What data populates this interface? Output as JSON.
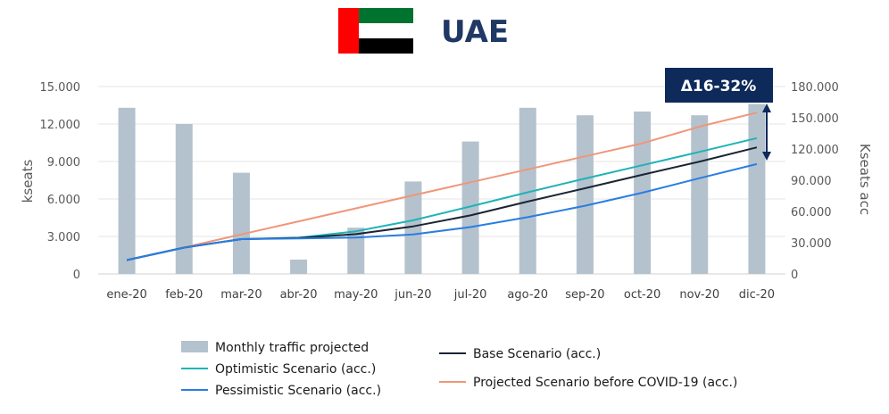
{
  "header": {
    "title": "UAE",
    "flag_colors": {
      "red": "#ff0000",
      "green": "#00732f",
      "white": "#ffffff",
      "black": "#000000"
    }
  },
  "callout": {
    "label": "Δ16-32%",
    "color": "#0d2a5a"
  },
  "chart_data": {
    "type": "bar+line",
    "title": "UAE",
    "categories": [
      "ene-20",
      "feb-20",
      "mar-20",
      "abr-20",
      "may-20",
      "jun-20",
      "jul-20",
      "ago-20",
      "sep-20",
      "oct-20",
      "nov-20",
      "dic-20"
    ],
    "y_left": {
      "label": "kseats",
      "range": [
        0,
        15000
      ],
      "ticks": [
        "0",
        "3.000",
        "6.000",
        "9.000",
        "12.000",
        "15.000"
      ],
      "tick_values": [
        0,
        3000,
        6000,
        9000,
        12000,
        15000
      ]
    },
    "y_right": {
      "label": "Kseats acc",
      "range": [
        0,
        180000
      ],
      "ticks": [
        "0",
        "30.000",
        "60.000",
        "90.000",
        "120.000",
        "150.000",
        "180.000"
      ],
      "tick_values": [
        0,
        30000,
        60000,
        90000,
        120000,
        150000,
        180000
      ]
    },
    "grid": true,
    "bars": {
      "name": "Monthly traffic projected",
      "color": "#b4c2ce",
      "values": [
        13300,
        12000,
        8100,
        1150,
        3700,
        7400,
        10600,
        13300,
        12700,
        13000,
        12700,
        13600
      ]
    },
    "lines": [
      {
        "name": "Base Scenario (acc.)",
        "color": "#1a2433",
        "values": [
          13300,
          25300,
          33400,
          34550,
          38250,
          45650,
          56250,
          69550,
          82250,
          95250,
          107950,
          121550
        ]
      },
      {
        "name": "Optimistic Scenario (acc.)",
        "color": "#1fb3b8",
        "values": [
          13300,
          25300,
          33400,
          34800,
          41000,
          51500,
          64800,
          78400,
          91600,
          104400,
          117300,
          130500
        ]
      },
      {
        "name": "Pessimistic Scenario (acc.)",
        "color": "#2a7de1",
        "values": [
          13300,
          25300,
          33400,
          34000,
          35000,
          38000,
          45000,
          54500,
          65500,
          78000,
          92000,
          105500
        ]
      },
      {
        "name": "Projected Scenario before COVID-19 (acc.)",
        "color": "#f0967a",
        "values": [
          13300,
          25500,
          38000,
          50500,
          63000,
          75500,
          88000,
          100500,
          113000,
          125500,
          141500,
          155000
        ]
      }
    ]
  },
  "legend": {
    "left": [
      "Monthly traffic projected",
      "Optimistic Scenario (acc.)",
      "Pessimistic Scenario (acc.)"
    ],
    "right": [
      "Base Scenario (acc.)",
      "Projected Scenario before COVID-19 (acc.)"
    ]
  }
}
